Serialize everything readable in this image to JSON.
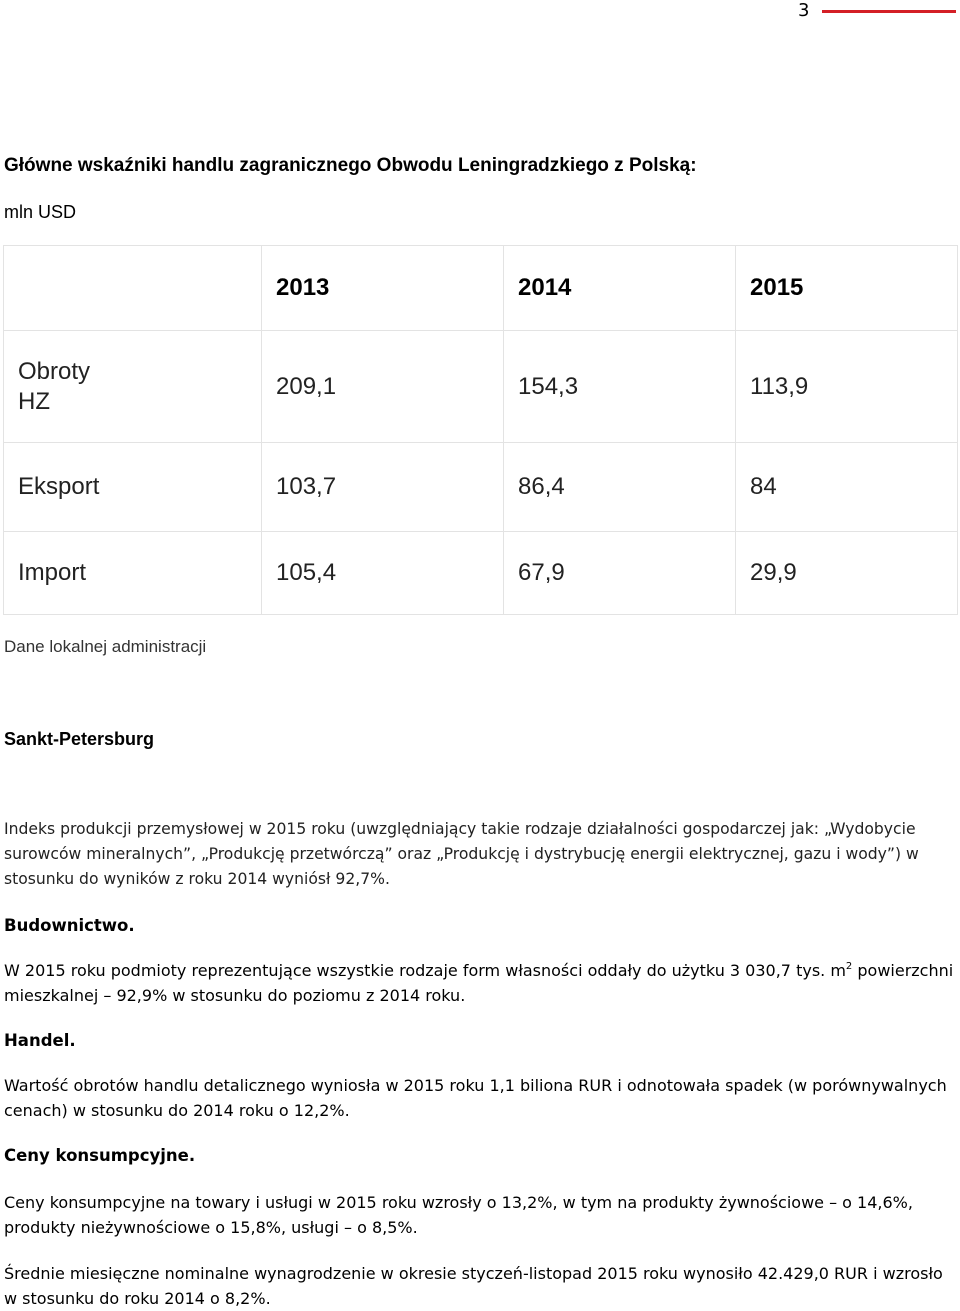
{
  "header": {
    "page_number": "3"
  },
  "title": "Główne wskaźniki handlu zagranicznego Obwodu Leningradzkiego z Polską:",
  "unit": "mln USD",
  "table": {
    "columns": [
      "",
      "2013",
      "2014",
      "2015"
    ],
    "rows": [
      {
        "label": "Obroty HZ",
        "values": [
          "209,1",
          "154,3",
          "113,9"
        ]
      },
      {
        "label": "Eksport",
        "values": [
          "103,7",
          "86,4",
          "84"
        ]
      },
      {
        "label": "Import",
        "values": [
          "105,4",
          "67,9",
          "29,9"
        ]
      }
    ]
  },
  "source": "Dane lokalnej administracji",
  "region_title": "Sankt-Petersburg",
  "paragraphs": {
    "industry": "Indeks produkcji przemysłowej w 2015 roku (uwzględniający takie rodzaje działalności gospodarczej jak: „Wydobycie surowców mineralnych”, „Produkcję przetwórczą” oraz „Produkcję i dystrybucję energii elektrycznej, gazu i wody”) w stosunku do wyników z roku 2014 wyniósł 92,7%.",
    "construction_heading": "Budownictwo.",
    "construction_text_a": "W 2015 roku podmioty reprezentujące wszystkie rodzaje form własności oddały do użytku 3 030,7 tys. m",
    "construction_sup": "2",
    "construction_text_b": " powierzchni mieszkalnej – 92,9% w stosunku do poziomu z 2014 roku.",
    "trade_heading": "Handel.",
    "trade_text": "Wartość obrotów handlu detalicznego wyniosła w 2015 roku 1,1 biliona RUR i odnotowała spadek (w porównywalnych cenach) w stosunku do 2014 roku o 12,2%.",
    "prices_heading": "Ceny konsumpcyjne.",
    "prices_text": "Ceny konsumpcyjne na towary i usługi w 2015 roku wzrosły o 13,2%, w tym na produkty żywnościowe – o 14,6%, produkty nieżywnościowe o 15,8%, usługi – o 8,5%.",
    "wages_text": "Średnie miesięczne nominalne wynagrodzenie w okresie styczeń-listopad 2015 roku wynosiło 42.429,0 RUR i wzrosło w stosunku do roku 2014 o 8,2%."
  },
  "colors": {
    "accent_rule": "#d41f26",
    "table_border": "#e3e3e3"
  }
}
